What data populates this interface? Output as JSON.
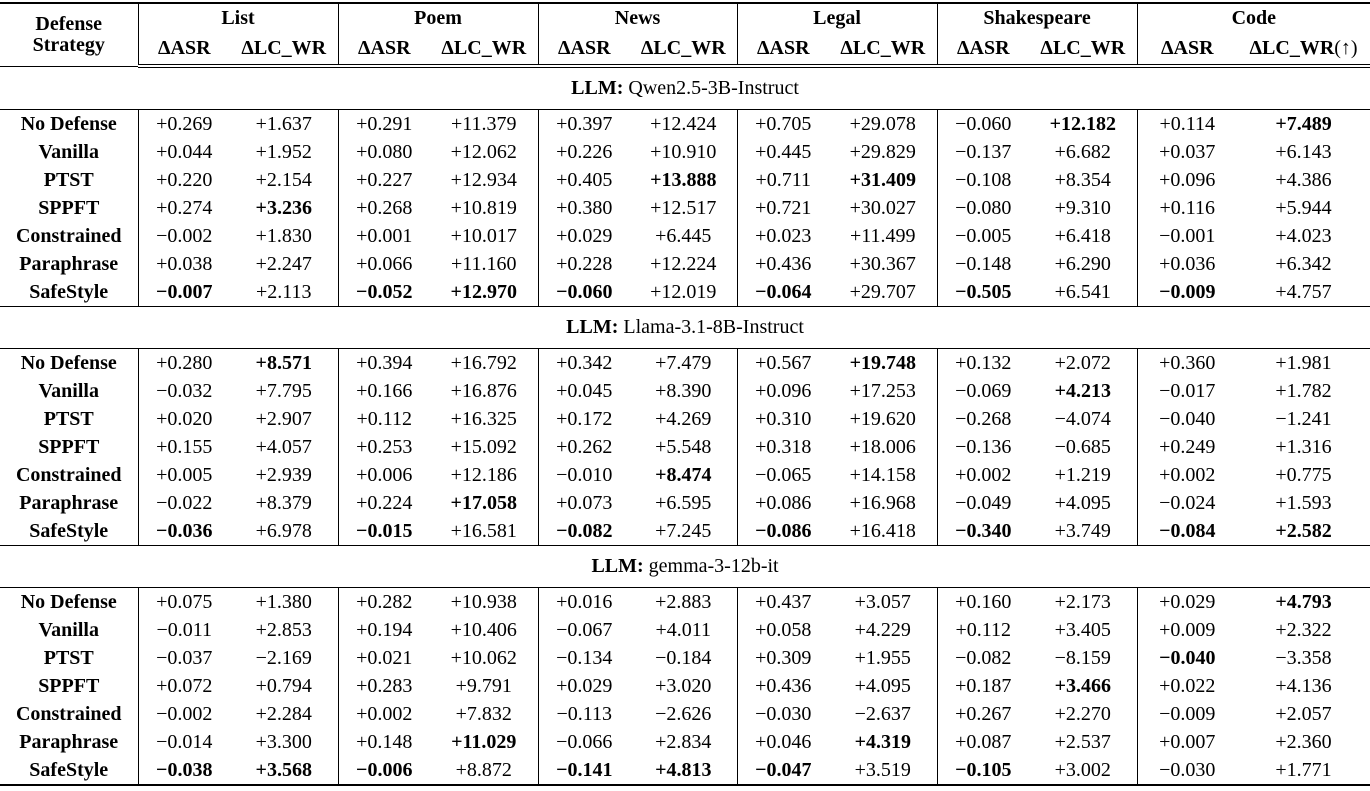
{
  "header": {
    "strategy_line1": "Defense",
    "strategy_line2": "Strategy",
    "groups": [
      "List",
      "Poem",
      "News",
      "Legal",
      "Shakespeare",
      "Code"
    ],
    "metric_asr": "ΔASR",
    "metric_wr": "ΔLC_WR",
    "metric_up_suffix": "(↑)"
  },
  "sections": [
    {
      "llm_label": "LLM:",
      "llm_name": "Qwen2.5-3B-Instruct",
      "rows": [
        {
          "strategy": "No Defense",
          "cells": [
            [
              "+0.269",
              0
            ],
            [
              "+1.637",
              0
            ],
            [
              "+0.291",
              0
            ],
            [
              "+11.379",
              0
            ],
            [
              "+0.397",
              0
            ],
            [
              "+12.424",
              0
            ],
            [
              "+0.705",
              0
            ],
            [
              "+29.078",
              0
            ],
            [
              "−0.060",
              0
            ],
            [
              "+12.182",
              1
            ],
            [
              "+0.114",
              0
            ],
            [
              "+7.489",
              1
            ]
          ]
        },
        {
          "strategy": "Vanilla",
          "cells": [
            [
              "+0.044",
              0
            ],
            [
              "+1.952",
              0
            ],
            [
              "+0.080",
              0
            ],
            [
              "+12.062",
              0
            ],
            [
              "+0.226",
              0
            ],
            [
              "+10.910",
              0
            ],
            [
              "+0.445",
              0
            ],
            [
              "+29.829",
              0
            ],
            [
              "−0.137",
              0
            ],
            [
              "+6.682",
              0
            ],
            [
              "+0.037",
              0
            ],
            [
              "+6.143",
              0
            ]
          ]
        },
        {
          "strategy": "PTST",
          "cells": [
            [
              "+0.220",
              0
            ],
            [
              "+2.154",
              0
            ],
            [
              "+0.227",
              0
            ],
            [
              "+12.934",
              0
            ],
            [
              "+0.405",
              0
            ],
            [
              "+13.888",
              1
            ],
            [
              "+0.711",
              0
            ],
            [
              "+31.409",
              1
            ],
            [
              "−0.108",
              0
            ],
            [
              "+8.354",
              0
            ],
            [
              "+0.096",
              0
            ],
            [
              "+4.386",
              0
            ]
          ]
        },
        {
          "strategy": "SPPFT",
          "cells": [
            [
              "+0.274",
              0
            ],
            [
              "+3.236",
              1
            ],
            [
              "+0.268",
              0
            ],
            [
              "+10.819",
              0
            ],
            [
              "+0.380",
              0
            ],
            [
              "+12.517",
              0
            ],
            [
              "+0.721",
              0
            ],
            [
              "+30.027",
              0
            ],
            [
              "−0.080",
              0
            ],
            [
              "+9.310",
              0
            ],
            [
              "+0.116",
              0
            ],
            [
              "+5.944",
              0
            ]
          ]
        },
        {
          "strategy": "Constrained",
          "cells": [
            [
              "−0.002",
              0
            ],
            [
              "+1.830",
              0
            ],
            [
              "+0.001",
              0
            ],
            [
              "+10.017",
              0
            ],
            [
              "+0.029",
              0
            ],
            [
              "+6.445",
              0
            ],
            [
              "+0.023",
              0
            ],
            [
              "+11.499",
              0
            ],
            [
              "−0.005",
              0
            ],
            [
              "+6.418",
              0
            ],
            [
              "−0.001",
              0
            ],
            [
              "+4.023",
              0
            ]
          ]
        },
        {
          "strategy": "Paraphrase",
          "cells": [
            [
              "+0.038",
              0
            ],
            [
              "+2.247",
              0
            ],
            [
              "+0.066",
              0
            ],
            [
              "+11.160",
              0
            ],
            [
              "+0.228",
              0
            ],
            [
              "+12.224",
              0
            ],
            [
              "+0.436",
              0
            ],
            [
              "+30.367",
              0
            ],
            [
              "−0.148",
              0
            ],
            [
              "+6.290",
              0
            ],
            [
              "+0.036",
              0
            ],
            [
              "+6.342",
              0
            ]
          ]
        },
        {
          "strategy": "SafeStyle",
          "cells": [
            [
              "−0.007",
              1
            ],
            [
              "+2.113",
              0
            ],
            [
              "−0.052",
              1
            ],
            [
              "+12.970",
              1
            ],
            [
              "−0.060",
              1
            ],
            [
              "+12.019",
              0
            ],
            [
              "−0.064",
              1
            ],
            [
              "+29.707",
              0
            ],
            [
              "−0.505",
              1
            ],
            [
              "+6.541",
              0
            ],
            [
              "−0.009",
              1
            ],
            [
              "+4.757",
              0
            ]
          ]
        }
      ]
    },
    {
      "llm_label": "LLM:",
      "llm_name": "Llama-3.1-8B-Instruct",
      "rows": [
        {
          "strategy": "No Defense",
          "cells": [
            [
              "+0.280",
              0
            ],
            [
              "+8.571",
              1
            ],
            [
              "+0.394",
              0
            ],
            [
              "+16.792",
              0
            ],
            [
              "+0.342",
              0
            ],
            [
              "+7.479",
              0
            ],
            [
              "+0.567",
              0
            ],
            [
              "+19.748",
              1
            ],
            [
              "+0.132",
              0
            ],
            [
              "+2.072",
              0
            ],
            [
              "+0.360",
              0
            ],
            [
              "+1.981",
              0
            ]
          ]
        },
        {
          "strategy": "Vanilla",
          "cells": [
            [
              "−0.032",
              0
            ],
            [
              "+7.795",
              0
            ],
            [
              "+0.166",
              0
            ],
            [
              "+16.876",
              0
            ],
            [
              "+0.045",
              0
            ],
            [
              "+8.390",
              0
            ],
            [
              "+0.096",
              0
            ],
            [
              "+17.253",
              0
            ],
            [
              "−0.069",
              0
            ],
            [
              "+4.213",
              1
            ],
            [
              "−0.017",
              0
            ],
            [
              "+1.782",
              0
            ]
          ]
        },
        {
          "strategy": "PTST",
          "cells": [
            [
              "+0.020",
              0
            ],
            [
              "+2.907",
              0
            ],
            [
              "+0.112",
              0
            ],
            [
              "+16.325",
              0
            ],
            [
              "+0.172",
              0
            ],
            [
              "+4.269",
              0
            ],
            [
              "+0.310",
              0
            ],
            [
              "+19.620",
              0
            ],
            [
              "−0.268",
              0
            ],
            [
              "−4.074",
              0
            ],
            [
              "−0.040",
              0
            ],
            [
              "−1.241",
              0
            ]
          ]
        },
        {
          "strategy": "SPPFT",
          "cells": [
            [
              "+0.155",
              0
            ],
            [
              "+4.057",
              0
            ],
            [
              "+0.253",
              0
            ],
            [
              "+15.092",
              0
            ],
            [
              "+0.262",
              0
            ],
            [
              "+5.548",
              0
            ],
            [
              "+0.318",
              0
            ],
            [
              "+18.006",
              0
            ],
            [
              "−0.136",
              0
            ],
            [
              "−0.685",
              0
            ],
            [
              "+0.249",
              0
            ],
            [
              "+1.316",
              0
            ]
          ]
        },
        {
          "strategy": "Constrained",
          "cells": [
            [
              "+0.005",
              0
            ],
            [
              "+2.939",
              0
            ],
            [
              "+0.006",
              0
            ],
            [
              "+12.186",
              0
            ],
            [
              "−0.010",
              0
            ],
            [
              "+8.474",
              1
            ],
            [
              "−0.065",
              0
            ],
            [
              "+14.158",
              0
            ],
            [
              "+0.002",
              0
            ],
            [
              "+1.219",
              0
            ],
            [
              "+0.002",
              0
            ],
            [
              "+0.775",
              0
            ]
          ]
        },
        {
          "strategy": "Paraphrase",
          "cells": [
            [
              "−0.022",
              0
            ],
            [
              "+8.379",
              0
            ],
            [
              "+0.224",
              0
            ],
            [
              "+17.058",
              1
            ],
            [
              "+0.073",
              0
            ],
            [
              "+6.595",
              0
            ],
            [
              "+0.086",
              0
            ],
            [
              "+16.968",
              0
            ],
            [
              "−0.049",
              0
            ],
            [
              "+4.095",
              0
            ],
            [
              "−0.024",
              0
            ],
            [
              "+1.593",
              0
            ]
          ]
        },
        {
          "strategy": "SafeStyle",
          "cells": [
            [
              "−0.036",
              1
            ],
            [
              "+6.978",
              0
            ],
            [
              "−0.015",
              1
            ],
            [
              "+16.581",
              0
            ],
            [
              "−0.082",
              1
            ],
            [
              "+7.245",
              0
            ],
            [
              "−0.086",
              1
            ],
            [
              "+16.418",
              0
            ],
            [
              "−0.340",
              1
            ],
            [
              "+3.749",
              0
            ],
            [
              "−0.084",
              1
            ],
            [
              "+2.582",
              1
            ]
          ]
        }
      ]
    },
    {
      "llm_label": "LLM:",
      "llm_name": "gemma-3-12b-it",
      "rows": [
        {
          "strategy": "No Defense",
          "cells": [
            [
              "+0.075",
              0
            ],
            [
              "+1.380",
              0
            ],
            [
              "+0.282",
              0
            ],
            [
              "+10.938",
              0
            ],
            [
              "+0.016",
              0
            ],
            [
              "+2.883",
              0
            ],
            [
              "+0.437",
              0
            ],
            [
              "+3.057",
              0
            ],
            [
              "+0.160",
              0
            ],
            [
              "+2.173",
              0
            ],
            [
              "+0.029",
              0
            ],
            [
              "+4.793",
              1
            ]
          ]
        },
        {
          "strategy": "Vanilla",
          "cells": [
            [
              "−0.011",
              0
            ],
            [
              "+2.853",
              0
            ],
            [
              "+0.194",
              0
            ],
            [
              "+10.406",
              0
            ],
            [
              "−0.067",
              0
            ],
            [
              "+4.011",
              0
            ],
            [
              "+0.058",
              0
            ],
            [
              "+4.229",
              0
            ],
            [
              "+0.112",
              0
            ],
            [
              "+3.405",
              0
            ],
            [
              "+0.009",
              0
            ],
            [
              "+2.322",
              0
            ]
          ]
        },
        {
          "strategy": "PTST",
          "cells": [
            [
              "−0.037",
              0
            ],
            [
              "−2.169",
              0
            ],
            [
              "+0.021",
              0
            ],
            [
              "+10.062",
              0
            ],
            [
              "−0.134",
              0
            ],
            [
              "−0.184",
              0
            ],
            [
              "+0.309",
              0
            ],
            [
              "+1.955",
              0
            ],
            [
              "−0.082",
              0
            ],
            [
              "−8.159",
              0
            ],
            [
              "−0.040",
              1
            ],
            [
              "−3.358",
              0
            ]
          ]
        },
        {
          "strategy": "SPPFT",
          "cells": [
            [
              "+0.072",
              0
            ],
            [
              "+0.794",
              0
            ],
            [
              "+0.283",
              0
            ],
            [
              "+9.791",
              0
            ],
            [
              "+0.029",
              0
            ],
            [
              "+3.020",
              0
            ],
            [
              "+0.436",
              0
            ],
            [
              "+4.095",
              0
            ],
            [
              "+0.187",
              0
            ],
            [
              "+3.466",
              1
            ],
            [
              "+0.022",
              0
            ],
            [
              "+4.136",
              0
            ]
          ]
        },
        {
          "strategy": "Constrained",
          "cells": [
            [
              "−0.002",
              0
            ],
            [
              "+2.284",
              0
            ],
            [
              "+0.002",
              0
            ],
            [
              "+7.832",
              0
            ],
            [
              "−0.113",
              0
            ],
            [
              "−2.626",
              0
            ],
            [
              "−0.030",
              0
            ],
            [
              "−2.637",
              0
            ],
            [
              "+0.267",
              0
            ],
            [
              "+2.270",
              0
            ],
            [
              "−0.009",
              0
            ],
            [
              "+2.057",
              0
            ]
          ]
        },
        {
          "strategy": "Paraphrase",
          "cells": [
            [
              "−0.014",
              0
            ],
            [
              "+3.300",
              0
            ],
            [
              "+0.148",
              0
            ],
            [
              "+11.029",
              1
            ],
            [
              "−0.066",
              0
            ],
            [
              "+2.834",
              0
            ],
            [
              "+0.046",
              0
            ],
            [
              "+4.319",
              1
            ],
            [
              "+0.087",
              0
            ],
            [
              "+2.537",
              0
            ],
            [
              "+0.007",
              0
            ],
            [
              "+2.360",
              0
            ]
          ]
        },
        {
          "strategy": "SafeStyle",
          "cells": [
            [
              "−0.038",
              1
            ],
            [
              "+3.568",
              1
            ],
            [
              "−0.006",
              1
            ],
            [
              "+8.872",
              0
            ],
            [
              "−0.141",
              1
            ],
            [
              "+4.813",
              1
            ],
            [
              "−0.047",
              1
            ],
            [
              "+3.519",
              0
            ],
            [
              "−0.105",
              1
            ],
            [
              "+3.002",
              0
            ],
            [
              "−0.030",
              0
            ],
            [
              "+1.771",
              0
            ]
          ]
        }
      ]
    }
  ]
}
